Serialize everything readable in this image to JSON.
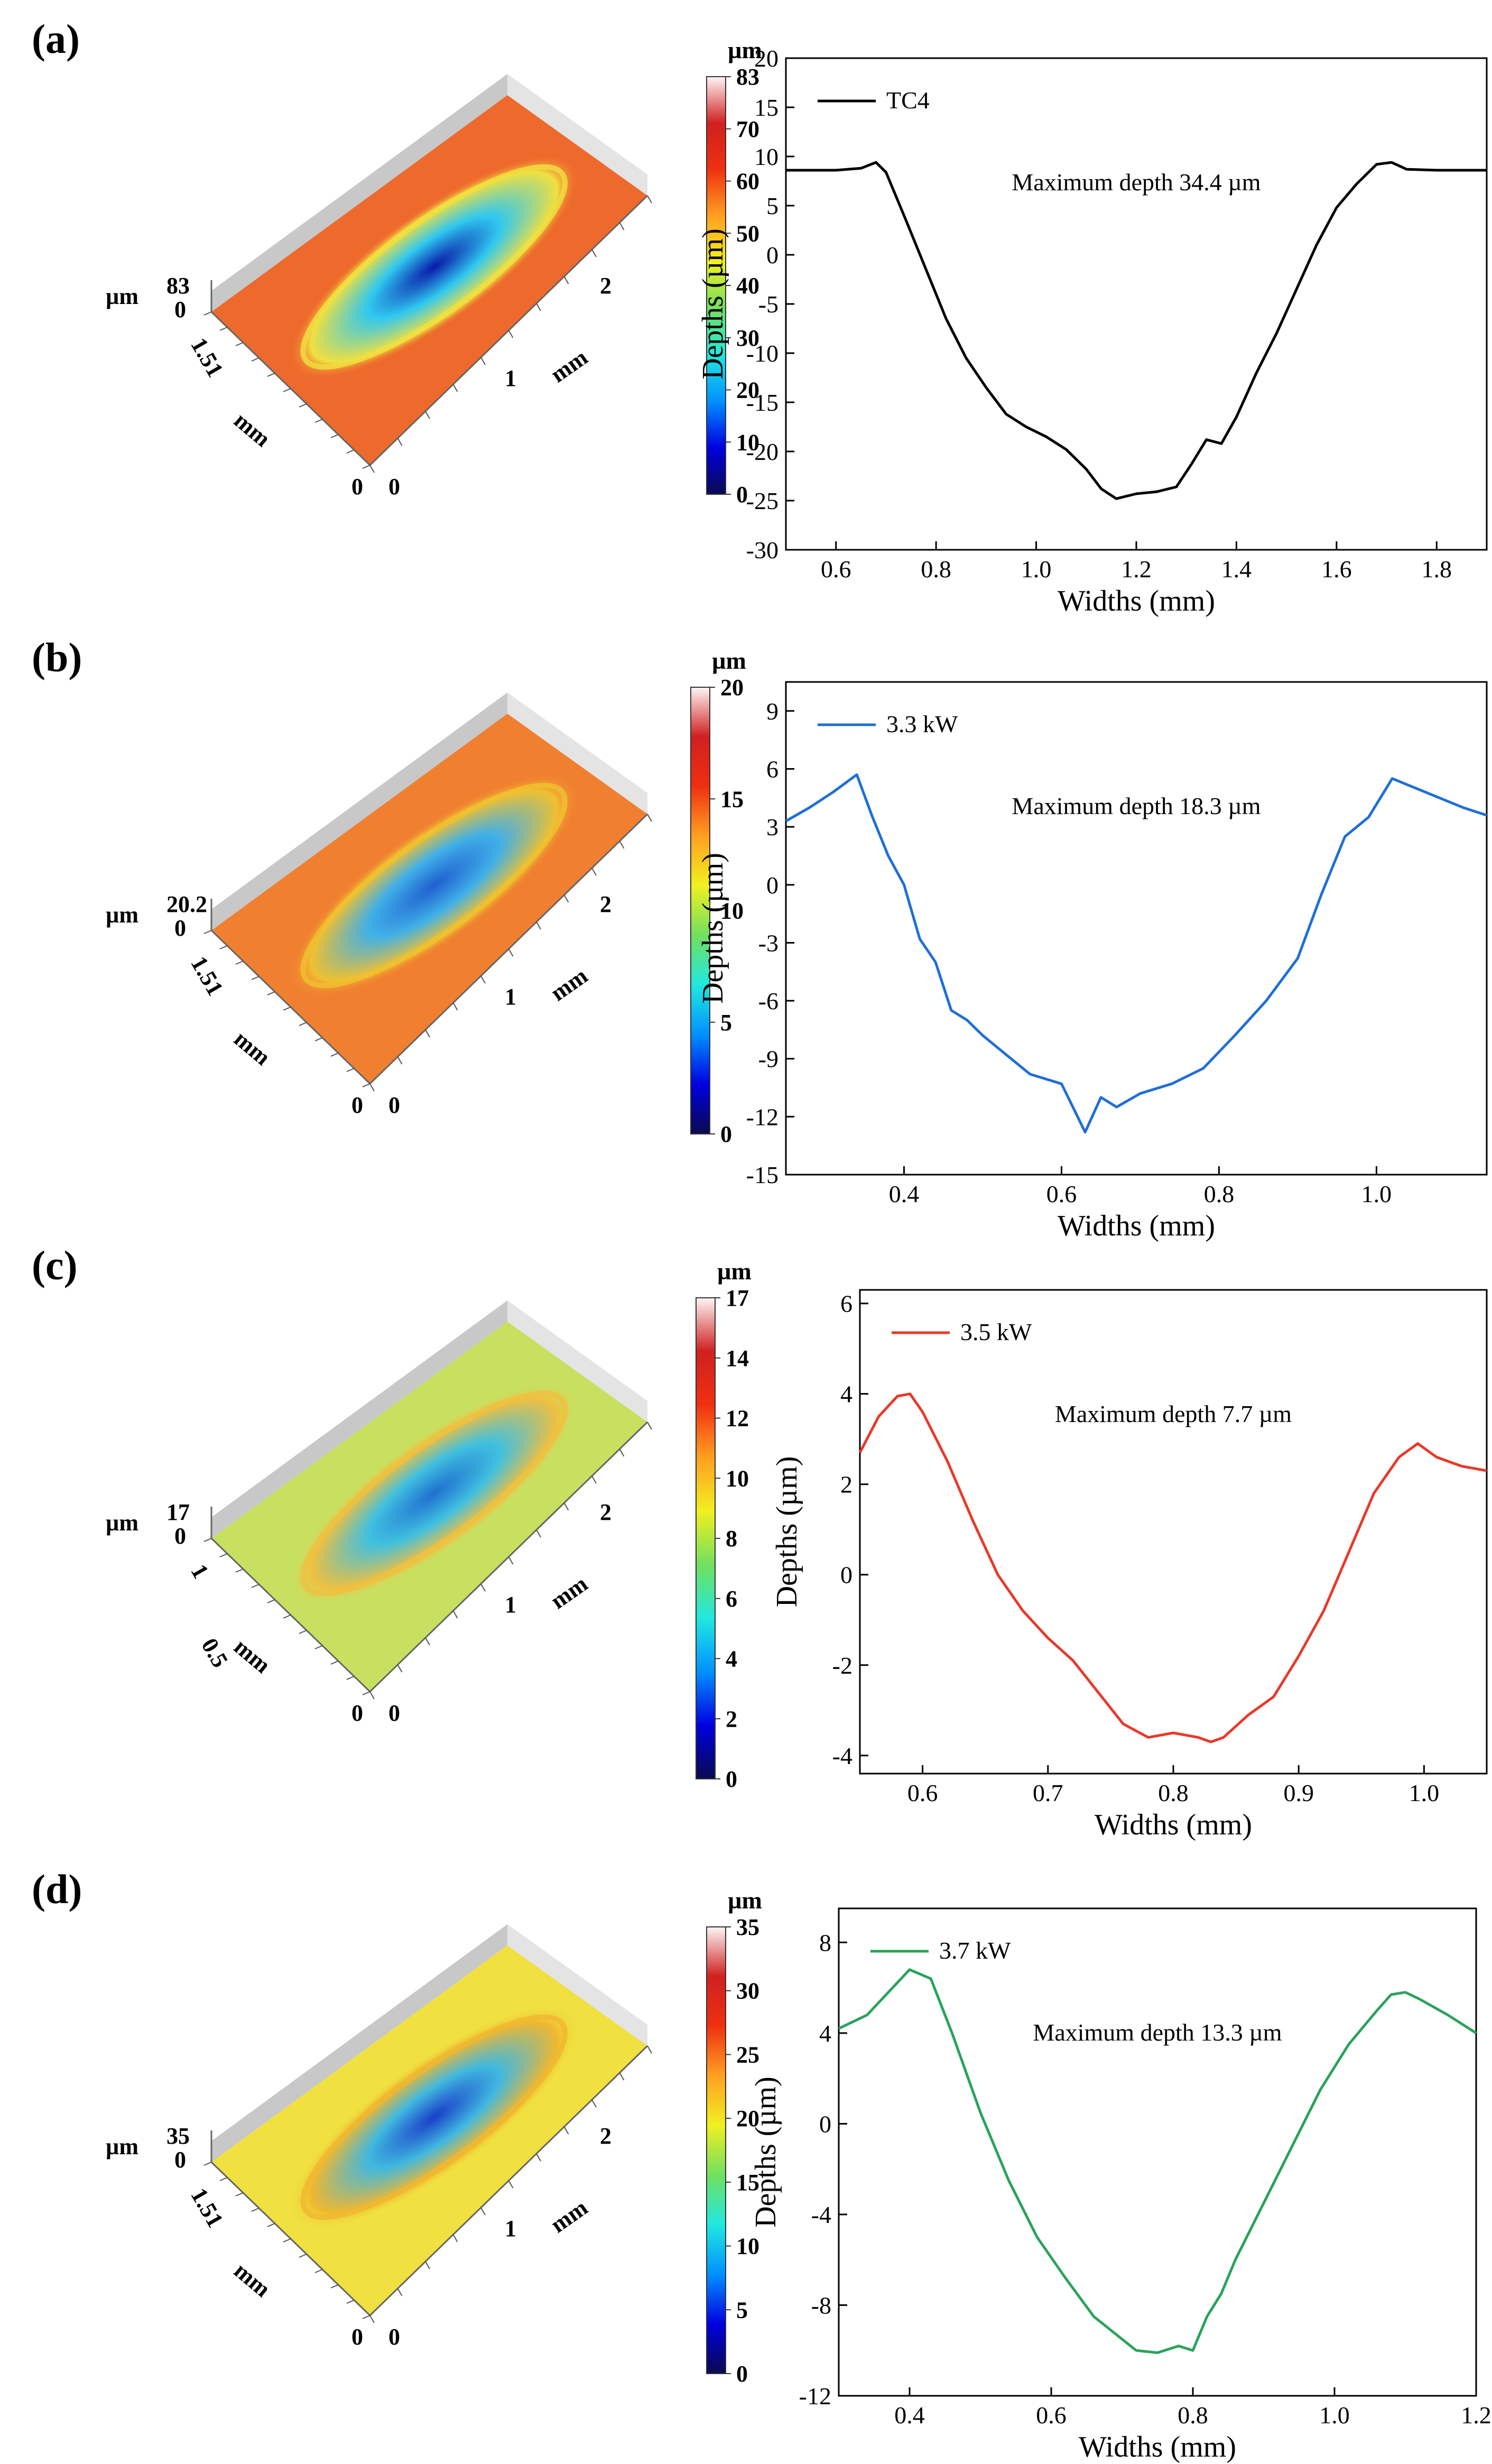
{
  "colormap": [
    "#0a0a50",
    "#0000e0",
    "#0090ff",
    "#20e8e0",
    "#70e060",
    "#f0f020",
    "#ffa020",
    "#f03010",
    "#d02020",
    "#fff5f5"
  ],
  "panels": [
    {
      "label": "(a)",
      "map3d": {
        "unit": "µm",
        "zmax": "83",
        "zmin": "0",
        "ywidth": "1.51",
        "yunit": "mm",
        "xunit": "mm",
        "xticks": [
          "0",
          "1",
          "2"
        ],
        "corner_zero": "0",
        "colorbar_ticks": [
          "0",
          "10",
          "20",
          "30",
          "40",
          "50",
          "60",
          "70",
          "83"
        ],
        "surface": {
          "base": "#ee6a2c",
          "rim": "#f0e040",
          "pit": "#30c8f0",
          "deep": "#0a1aa8",
          "walls": "#b0b0b0"
        }
      },
      "chart_data": {
        "type": "line",
        "color": "#000000",
        "legend": "TC4",
        "annotation": "Maximum depth 34.4 µm",
        "xlabel": "Widths (mm)",
        "ylabel": "Depths (µm)",
        "xlim": [
          0.5,
          1.9
        ],
        "ylim": [
          -30,
          20
        ],
        "xticks": [
          0.6,
          0.8,
          1.0,
          1.2,
          1.4,
          1.6,
          1.8
        ],
        "xtick_labels": [
          "0.6",
          "0.8",
          "1.0",
          "1.2",
          "1.4",
          "1.6",
          "1.8"
        ],
        "yticks": [
          -30,
          -25,
          -20,
          -15,
          -10,
          -5,
          0,
          5,
          10,
          15,
          20
        ],
        "ytick_labels": [
          "-30",
          "-25",
          "-20",
          "-15",
          "-10",
          "-5",
          "0",
          "5",
          "10",
          "15",
          "20"
        ],
        "x": [
          0.5,
          0.6,
          0.65,
          0.68,
          0.7,
          0.74,
          0.78,
          0.82,
          0.86,
          0.9,
          0.94,
          0.98,
          1.02,
          1.06,
          1.1,
          1.13,
          1.16,
          1.2,
          1.24,
          1.28,
          1.31,
          1.34,
          1.37,
          1.4,
          1.44,
          1.48,
          1.52,
          1.56,
          1.6,
          1.64,
          1.68,
          1.71,
          1.74,
          1.8,
          1.9
        ],
        "y": [
          8.6,
          8.6,
          8.8,
          9.4,
          8.4,
          3.5,
          -1.5,
          -6.5,
          -10.5,
          -13.5,
          -16.2,
          -17.5,
          -18.5,
          -19.8,
          -21.8,
          -23.8,
          -24.8,
          -24.3,
          -24.1,
          -23.6,
          -21.3,
          -18.8,
          -19.2,
          -16.5,
          -12.0,
          -8.0,
          -3.5,
          1.0,
          4.8,
          7.2,
          9.2,
          9.4,
          8.7,
          8.6,
          8.6
        ]
      }
    },
    {
      "label": "(b)",
      "map3d": {
        "unit": "µm",
        "zmax": "20.2",
        "zmin": "0",
        "ywidth": "1.51",
        "yunit": "mm",
        "xunit": "mm",
        "xticks": [
          "0",
          "1",
          "2"
        ],
        "corner_zero": "0",
        "colorbar_ticks": [
          "0",
          "5",
          "10",
          "15",
          "20"
        ],
        "surface": {
          "base": "#f08030",
          "rim": "#f0c030",
          "pit": "#40b0e8",
          "deep": "#2060d0",
          "walls": "#b0b0b0"
        }
      },
      "chart_data": {
        "type": "line",
        "color": "#1f6fd6",
        "legend": "3.3 kW",
        "annotation": "Maximum depth 18.3 µm",
        "xlabel": "Widths (mm)",
        "ylabel": "Depths (µm)",
        "xlim": [
          0.25,
          1.14
        ],
        "ylim": [
          -15,
          10.5
        ],
        "xticks": [
          0.4,
          0.6,
          0.8,
          1.0
        ],
        "xtick_labels": [
          "0.4",
          "0.6",
          "0.8",
          "1.0"
        ],
        "yticks": [
          -15,
          -12,
          -9,
          -6,
          -3,
          0,
          3,
          6,
          9
        ],
        "ytick_labels": [
          "-15",
          "-12",
          "-9",
          "-6",
          "-3",
          "0",
          "3",
          "6",
          "9"
        ],
        "x": [
          0.25,
          0.28,
          0.31,
          0.34,
          0.36,
          0.38,
          0.4,
          0.42,
          0.44,
          0.46,
          0.48,
          0.5,
          0.53,
          0.56,
          0.6,
          0.63,
          0.65,
          0.67,
          0.7,
          0.74,
          0.78,
          0.82,
          0.86,
          0.9,
          0.93,
          0.96,
          0.99,
          1.02,
          1.05,
          1.08,
          1.11,
          1.14
        ],
        "y": [
          3.3,
          4.0,
          4.8,
          5.7,
          3.5,
          1.5,
          0.0,
          -2.8,
          -4.0,
          -6.5,
          -7.0,
          -7.8,
          -8.8,
          -9.8,
          -10.3,
          -12.8,
          -11.0,
          -11.5,
          -10.8,
          -10.3,
          -9.5,
          -7.8,
          -6.0,
          -3.8,
          -0.5,
          2.5,
          3.5,
          5.5,
          5.0,
          4.5,
          4.0,
          3.6
        ]
      }
    },
    {
      "label": "(c)",
      "map3d": {
        "unit": "µm",
        "zmax": "17",
        "zmin": "0",
        "ywidth": "1",
        "ymid": "0.5",
        "yunit": "mm",
        "xunit": "mm",
        "xticks": [
          "0",
          "1",
          "2"
        ],
        "corner_zero": "0",
        "colorbar_ticks": [
          "0",
          "2",
          "4",
          "6",
          "8",
          "10",
          "12",
          "14",
          "17"
        ],
        "surface": {
          "base": "#c8e060",
          "rim": "#f0c040",
          "pit": "#40c0e0",
          "deep": "#2070d0",
          "walls": "#b0b0b0"
        }
      },
      "chart_data": {
        "type": "line",
        "color": "#e8392a",
        "legend": "3.5 kW",
        "annotation": "Maximum depth 7.7 µm",
        "xlabel": "Widths (mm)",
        "ylabel": "Depths (µm)",
        "xlim": [
          0.55,
          1.05
        ],
        "ylim": [
          -4.4,
          6.3
        ],
        "xticks": [
          0.6,
          0.7,
          0.8,
          0.9,
          1.0
        ],
        "xtick_labels": [
          "0.6",
          "0.7",
          "0.8",
          "0.9",
          "1.0"
        ],
        "yticks": [
          -4,
          -2,
          0,
          2,
          4,
          6
        ],
        "ytick_labels": [
          "-4",
          "-2",
          "0",
          "2",
          "4",
          "6"
        ],
        "x": [
          0.55,
          0.565,
          0.58,
          0.59,
          0.6,
          0.62,
          0.64,
          0.66,
          0.68,
          0.7,
          0.72,
          0.74,
          0.76,
          0.78,
          0.8,
          0.82,
          0.83,
          0.84,
          0.86,
          0.88,
          0.9,
          0.92,
          0.94,
          0.96,
          0.98,
          0.995,
          1.01,
          1.03,
          1.05
        ],
        "y": [
          2.7,
          3.5,
          3.95,
          4.0,
          3.6,
          2.5,
          1.2,
          0.0,
          -0.8,
          -1.4,
          -1.9,
          -2.6,
          -3.3,
          -3.6,
          -3.5,
          -3.6,
          -3.7,
          -3.6,
          -3.1,
          -2.7,
          -1.8,
          -0.8,
          0.5,
          1.8,
          2.6,
          2.9,
          2.6,
          2.4,
          2.3
        ]
      }
    },
    {
      "label": "(d)",
      "map3d": {
        "unit": "µm",
        "zmax": "35",
        "zmin": "0",
        "ywidth": "1.51",
        "yunit": "mm",
        "xunit": "mm",
        "xticks": [
          "0",
          "1",
          "2"
        ],
        "corner_zero": "0",
        "colorbar_ticks": [
          "0",
          "5",
          "10",
          "15",
          "20",
          "25",
          "30",
          "35"
        ],
        "surface": {
          "base": "#f0e040",
          "rim": "#f0b830",
          "pit": "#40b8e0",
          "deep": "#1a40c8",
          "walls": "#b0b0b0"
        }
      },
      "chart_data": {
        "type": "line",
        "color": "#2aa35b",
        "legend": "3.7 kW",
        "annotation": "Maximum depth 13.3 µm",
        "xlabel": "Widths (mm)",
        "ylabel": "Depths (µm)",
        "xlim": [
          0.3,
          1.2
        ],
        "ylim": [
          -12,
          9.5
        ],
        "xticks": [
          0.4,
          0.6,
          0.8,
          1.0,
          1.2
        ],
        "xtick_labels": [
          "0.4",
          "0.6",
          "0.8",
          "1.0",
          "1.2"
        ],
        "yticks": [
          -12,
          -8,
          -4,
          0,
          4,
          8
        ],
        "ytick_labels": [
          "-12",
          "-8",
          "-4",
          "0",
          "4",
          "8"
        ],
        "x": [
          0.3,
          0.34,
          0.37,
          0.4,
          0.43,
          0.46,
          0.5,
          0.54,
          0.58,
          0.62,
          0.66,
          0.7,
          0.72,
          0.75,
          0.78,
          0.8,
          0.82,
          0.84,
          0.86,
          0.9,
          0.94,
          0.98,
          1.02,
          1.06,
          1.08,
          1.1,
          1.12,
          1.16,
          1.2
        ],
        "y": [
          4.2,
          4.8,
          5.8,
          6.8,
          6.4,
          4.0,
          0.5,
          -2.5,
          -5.0,
          -6.8,
          -8.5,
          -9.5,
          -10.0,
          -10.1,
          -9.8,
          -10.0,
          -8.5,
          -7.5,
          -6.0,
          -3.5,
          -1.0,
          1.5,
          3.5,
          5.0,
          5.7,
          5.8,
          5.5,
          4.8,
          4.0
        ]
      }
    }
  ]
}
